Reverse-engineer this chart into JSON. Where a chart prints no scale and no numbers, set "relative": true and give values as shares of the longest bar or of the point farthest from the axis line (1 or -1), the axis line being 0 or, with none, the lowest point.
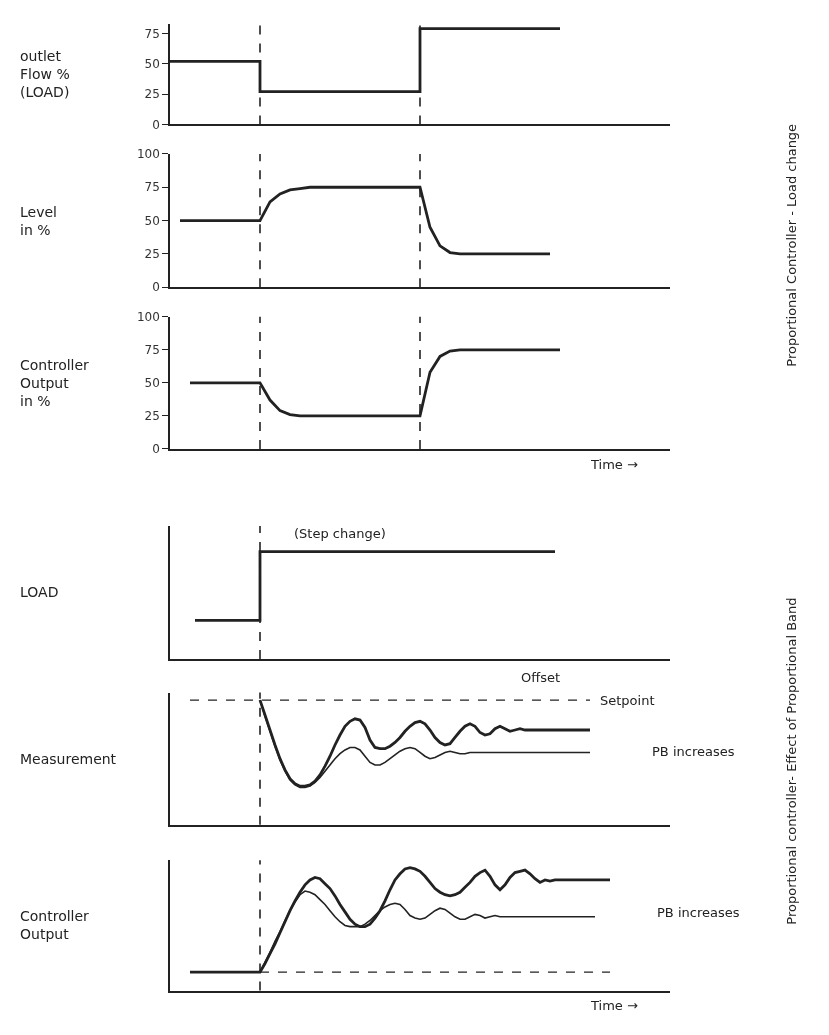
{
  "chart_data": [
    {
      "type": "step",
      "ylabel": "outlet\nFlow %\n(LOAD)",
      "annotations": [
        "Proportional Controller - Load change"
      ],
      "categories": [
        null,
        null,
        null,
        null,
        null,
        null,
        null,
        null,
        null,
        null,
        null,
        null,
        null,
        null,
        null,
        null,
        null,
        null,
        null,
        null,
        null,
        null,
        null,
        null,
        null,
        null,
        null,
        null,
        null,
        null,
        null,
        null,
        null,
        null,
        null,
        null,
        null,
        null,
        null,
        null,
        null,
        null,
        null,
        null,
        null,
        null,
        null,
        null,
        null,
        null,
        null
      ],
      "series": [
        {
          "color": "#222222",
          "values": [
            52,
            52,
            52,
            52,
            52,
            52,
            52,
            52,
            52,
            27,
            27,
            27,
            27,
            27,
            27,
            27,
            27,
            27,
            27,
            27,
            27,
            27,
            27,
            27,
            27,
            79,
            79,
            79,
            79,
            79,
            79,
            79,
            79,
            79,
            79,
            79,
            79,
            79,
            79,
            79,
            null,
            null,
            null,
            null,
            null,
            null,
            null,
            null,
            null,
            null,
            null
          ]
        }
      ],
      "ylim": [
        0,
        83
      ],
      "yticks": [
        0,
        25,
        50,
        75
      ],
      "tick_labels": "y",
      "marker": "none"
    },
    {
      "type": "line",
      "ylabel": "Level\nin %",
      "categories": [
        null,
        null,
        null,
        null,
        null,
        null,
        null,
        null,
        null,
        null,
        null,
        null,
        null,
        null,
        null,
        null,
        null,
        null,
        null,
        null,
        null,
        null,
        null,
        null,
        null,
        null,
        null,
        null,
        null,
        null,
        null,
        null,
        null,
        null,
        null,
        null,
        null,
        null,
        null,
        null,
        null,
        null,
        null,
        null,
        null,
        null,
        null,
        null,
        null,
        null,
        null
      ],
      "series": [
        {
          "color": "#222222",
          "values": [
            null,
            50,
            50,
            50,
            50,
            50,
            50,
            50,
            50,
            50,
            64,
            70,
            73,
            74,
            75,
            75,
            75,
            75,
            75,
            75,
            75,
            75,
            75,
            75,
            75,
            75,
            45,
            31,
            26,
            25,
            25,
            25,
            25,
            25,
            25,
            25,
            25,
            25,
            25,
            null,
            null,
            null,
            null,
            null,
            null,
            null,
            null,
            null,
            null,
            null,
            null
          ]
        }
      ],
      "ylim": [
        0,
        100
      ],
      "yticks": [
        0,
        25,
        50,
        75,
        100
      ],
      "tick_labels": "y",
      "marker": "none"
    },
    {
      "type": "line",
      "ylabel": "Controller\nOutput\nin %",
      "xlabel": "Time →",
      "categories": [
        null,
        null,
        null,
        null,
        null,
        null,
        null,
        null,
        null,
        null,
        null,
        null,
        null,
        null,
        null,
        null,
        null,
        null,
        null,
        null,
        null,
        null,
        null,
        null,
        null,
        null,
        null,
        null,
        null,
        null,
        null,
        null,
        null,
        null,
        null,
        null,
        null,
        null,
        null,
        null,
        null,
        null,
        null,
        null,
        null,
        null,
        null,
        null,
        null,
        null,
        null
      ],
      "series": [
        {
          "color": "#222222",
          "values": [
            null,
            null,
            50,
            50,
            50,
            50,
            50,
            50,
            50,
            50,
            37,
            29,
            26,
            25,
            25,
            25,
            25,
            25,
            25,
            25,
            25,
            25,
            25,
            25,
            25,
            25,
            58,
            70,
            74,
            75,
            75,
            75,
            75,
            75,
            75,
            75,
            75,
            75,
            75,
            75,
            null,
            null,
            null,
            null,
            null,
            null,
            null,
            null,
            null,
            null,
            null
          ]
        }
      ],
      "ylim": [
        0,
        100
      ],
      "yticks": [
        0,
        25,
        50,
        75,
        100
      ],
      "tick_labels": "y",
      "marker": "none"
    },
    {
      "type": "step",
      "ylabel": "LOAD",
      "relative": true,
      "annotations": [
        "(Step change)",
        "Proportional controller- Effect of Proportional Band"
      ],
      "categories": [
        null,
        null,
        null,
        null,
        null,
        null,
        null,
        null,
        null,
        null,
        null,
        null,
        null,
        null,
        null,
        null,
        null,
        null,
        null,
        null,
        null,
        null,
        null,
        null,
        null,
        null,
        null,
        null,
        null,
        null,
        null,
        null,
        null,
        null,
        null,
        null,
        null,
        null,
        null,
        null,
        null,
        null,
        null,
        null,
        null,
        null,
        null,
        null,
        null,
        null,
        null,
        null,
        null,
        null,
        null,
        null,
        null,
        null,
        null,
        null,
        null,
        null,
        null,
        null,
        null,
        null,
        null,
        null,
        null,
        null,
        null,
        null,
        null,
        null,
        null,
        null,
        null,
        null,
        null,
        null,
        null,
        null,
        null,
        null,
        null,
        null,
        null,
        null,
        null,
        null,
        null,
        null,
        null,
        null,
        null,
        null,
        null,
        null,
        null,
        null,
        null
      ],
      "series": [
        {
          "color": "#222222",
          "values": [
            null,
            null,
            null,
            null,
            null,
            0.36,
            0.36,
            0.36,
            0.36,
            0.36,
            0.36,
            0.36,
            0.36,
            0.36,
            0.36,
            0.36,
            0.36,
            0.36,
            1,
            1,
            1,
            1,
            1,
            1,
            1,
            1,
            1,
            1,
            1,
            1,
            1,
            1,
            1,
            1,
            1,
            1,
            1,
            1,
            1,
            1,
            1,
            1,
            1,
            1,
            1,
            1,
            1,
            1,
            1,
            1,
            1,
            1,
            1,
            1,
            1,
            1,
            1,
            1,
            1,
            1,
            1,
            1,
            1,
            1,
            1,
            1,
            1,
            1,
            1,
            1,
            1,
            1,
            1,
            1,
            1,
            1,
            1,
            1,
            null,
            null,
            null,
            null,
            null,
            null,
            null,
            null,
            null,
            null,
            null,
            null,
            null,
            null,
            null,
            null,
            null,
            null,
            null,
            null,
            null,
            null,
            null
          ]
        }
      ],
      "tick_labels": false,
      "marker": "none"
    },
    {
      "type": "line",
      "ylabel": "Measurement",
      "relative": true,
      "annotations": [
        "Offset",
        "Setpoint",
        "PB increases"
      ],
      "categories": [
        null,
        null,
        null,
        null,
        null,
        null,
        null,
        null,
        null,
        null,
        null,
        null,
        null,
        null,
        null,
        null,
        null,
        null,
        null,
        null,
        null,
        null,
        null,
        null,
        null,
        null,
        null,
        null,
        null,
        null,
        null,
        null,
        null,
        null,
        null,
        null,
        null,
        null,
        null,
        null,
        null,
        null,
        null,
        null,
        null,
        null,
        null,
        null,
        null,
        null,
        null,
        null,
        null,
        null,
        null,
        null,
        null,
        null,
        null,
        null,
        null,
        null,
        null,
        null,
        null,
        null,
        null,
        null,
        null,
        null,
        null,
        null,
        null,
        null,
        null,
        null,
        null,
        null,
        null,
        null,
        null,
        null,
        null,
        null,
        null,
        null,
        null,
        null,
        null,
        null,
        null,
        null,
        null,
        null,
        null,
        null,
        null,
        null,
        null,
        null,
        null
      ],
      "series": [
        {
          "color": "#222222",
          "values": [
            null,
            null,
            null,
            null,
            null,
            null,
            null,
            null,
            null,
            null,
            null,
            null,
            null,
            null,
            null,
            null,
            null,
            null,
            1.0,
            0.88,
            0.76,
            0.64,
            0.53,
            0.44,
            0.37,
            0.33,
            0.31,
            0.31,
            0.32,
            0.35,
            0.4,
            0.47,
            0.55,
            0.64,
            0.72,
            0.79,
            0.83,
            0.85,
            0.84,
            0.78,
            0.68,
            0.62,
            0.61,
            0.61,
            0.63,
            0.66,
            0.7,
            0.75,
            0.79,
            0.82,
            0.83,
            0.81,
            0.76,
            0.7,
            0.66,
            0.64,
            0.65,
            0.7,
            0.75,
            0.79,
            0.81,
            0.79,
            0.74,
            0.72,
            0.73,
            0.77,
            0.79,
            0.77,
            0.75,
            0.76,
            0.77,
            0.76,
            0.76,
            0.76,
            0.76,
            0.76,
            0.76,
            0.76,
            0.76,
            0.76,
            0.76,
            0.76,
            0.76,
            0.76,
            0.76,
            null,
            null,
            null,
            null,
            null,
            null,
            null,
            null,
            null,
            null,
            null,
            null,
            null,
            null,
            null,
            null
          ]
        },
        {
          "color": "#222222",
          "values": [
            null,
            null,
            null,
            null,
            null,
            null,
            null,
            null,
            null,
            null,
            null,
            null,
            null,
            null,
            null,
            null,
            null,
            null,
            1.0,
            0.87,
            0.75,
            0.63,
            0.52,
            0.43,
            0.36,
            0.32,
            0.3,
            0.3,
            0.31,
            0.34,
            0.38,
            0.43,
            0.48,
            0.53,
            0.57,
            0.6,
            0.62,
            0.62,
            0.6,
            0.55,
            0.5,
            0.48,
            0.48,
            0.5,
            0.53,
            0.56,
            0.59,
            0.61,
            0.62,
            0.61,
            0.58,
            0.55,
            0.53,
            0.54,
            0.56,
            0.58,
            0.59,
            0.58,
            0.57,
            0.57,
            0.58,
            0.58,
            0.58,
            0.58,
            0.58,
            0.58,
            0.58,
            0.58,
            0.58,
            0.58,
            0.58,
            0.58,
            0.58,
            0.58,
            0.58,
            0.58,
            0.58,
            0.58,
            0.58,
            0.58,
            0.58,
            0.58,
            0.58,
            0.58,
            0.58,
            null,
            null,
            null,
            null,
            null,
            null,
            null,
            null,
            null,
            null,
            null,
            null,
            null,
            null,
            null,
            null
          ]
        },
        {
          "color": "#222222",
          "line_style": "dashed",
          "values": [
            null,
            null,
            null,
            null,
            1,
            1,
            1,
            1,
            1,
            1,
            1,
            1,
            1,
            1,
            1,
            1,
            1,
            1,
            1,
            1,
            1,
            1,
            1,
            1,
            1,
            1,
            1,
            1,
            1,
            1,
            1,
            1,
            1,
            1,
            1,
            1,
            1,
            1,
            1,
            1,
            1,
            1,
            1,
            1,
            1,
            1,
            1,
            1,
            1,
            1,
            1,
            1,
            1,
            1,
            1,
            1,
            1,
            1,
            1,
            1,
            1,
            1,
            1,
            1,
            1,
            1,
            1,
            1,
            1,
            1,
            1,
            1,
            1,
            1,
            1,
            1,
            1,
            1,
            1,
            1,
            1,
            1,
            1,
            1,
            1,
            null,
            null,
            null,
            null,
            null,
            null,
            null,
            null,
            null,
            null,
            null,
            null,
            null,
            null,
            null,
            null
          ]
        }
      ],
      "tick_labels": false,
      "marker": "none"
    },
    {
      "type": "line",
      "ylabel": "Controller\nOutput",
      "xlabel": "Time →",
      "relative": true,
      "annotations": [
        "PB increases"
      ],
      "categories": [
        null,
        null,
        null,
        null,
        null,
        null,
        null,
        null,
        null,
        null,
        null,
        null,
        null,
        null,
        null,
        null,
        null,
        null,
        null,
        null,
        null,
        null,
        null,
        null,
        null,
        null,
        null,
        null,
        null,
        null,
        null,
        null,
        null,
        null,
        null,
        null,
        null,
        null,
        null,
        null,
        null,
        null,
        null,
        null,
        null,
        null,
        null,
        null,
        null,
        null,
        null,
        null,
        null,
        null,
        null,
        null,
        null,
        null,
        null,
        null,
        null,
        null,
        null,
        null,
        null,
        null,
        null,
        null,
        null,
        null,
        null,
        null,
        null,
        null,
        null,
        null,
        null,
        null,
        null,
        null,
        null,
        null,
        null,
        null,
        null,
        null,
        null,
        null,
        null,
        null,
        null,
        null,
        null,
        null,
        null,
        null,
        null,
        null,
        null,
        null,
        null
      ],
      "series": [
        {
          "color": "#222222",
          "values": [
            null,
            null,
            null,
            null,
            0.15,
            0.15,
            0.15,
            0.15,
            0.15,
            0.15,
            0.15,
            0.15,
            0.15,
            0.15,
            0.15,
            0.15,
            0.15,
            0.15,
            0.15,
            0.22,
            0.3,
            0.38,
            0.47,
            0.56,
            0.65,
            0.73,
            0.8,
            0.86,
            0.9,
            0.92,
            0.91,
            0.87,
            0.83,
            0.77,
            0.7,
            0.64,
            0.58,
            0.54,
            0.52,
            0.52,
            0.54,
            0.59,
            0.65,
            0.73,
            0.82,
            0.9,
            0.95,
            0.99,
            1.0,
            0.99,
            0.97,
            0.93,
            0.88,
            0.83,
            0.8,
            0.78,
            0.77,
            0.78,
            0.8,
            0.84,
            0.88,
            0.93,
            0.96,
            0.98,
            0.93,
            0.86,
            0.82,
            0.86,
            0.92,
            0.96,
            0.97,
            0.98,
            0.95,
            0.91,
            0.88,
            0.9,
            0.89,
            0.9,
            0.9,
            0.9,
            0.9,
            0.9,
            0.9,
            0.9,
            0.9,
            0.9,
            0.9,
            0.9,
            0.9,
            null,
            null,
            null,
            null,
            null,
            null,
            null,
            null,
            null,
            null,
            null,
            null
          ]
        },
        {
          "color": "#222222",
          "values": [
            null,
            null,
            null,
            null,
            null,
            null,
            null,
            null,
            null,
            null,
            null,
            null,
            null,
            null,
            null,
            null,
            null,
            null,
            0.15,
            0.23,
            0.31,
            0.4,
            0.48,
            0.57,
            0.65,
            0.72,
            0.78,
            0.81,
            0.8,
            0.78,
            0.74,
            0.7,
            0.65,
            0.6,
            0.56,
            0.53,
            0.52,
            0.52,
            0.52,
            0.54,
            0.57,
            0.61,
            0.65,
            0.68,
            0.7,
            0.71,
            0.7,
            0.66,
            0.61,
            0.59,
            0.58,
            0.59,
            0.62,
            0.65,
            0.67,
            0.66,
            0.63,
            0.6,
            0.58,
            0.58,
            0.6,
            0.62,
            0.61,
            0.59,
            0.6,
            0.61,
            0.6,
            0.6,
            0.6,
            0.6,
            0.6,
            0.6,
            0.6,
            0.6,
            0.6,
            0.6,
            0.6,
            0.6,
            0.6,
            0.6,
            0.6,
            0.6,
            0.6,
            0.6,
            0.6,
            0.6,
            null,
            null,
            null,
            null,
            null,
            null,
            null,
            null,
            null,
            null,
            null,
            null,
            null,
            null,
            null
          ]
        },
        {
          "color": "#222222",
          "line_style": "dashed",
          "values": [
            null,
            null,
            null,
            null,
            null,
            null,
            null,
            null,
            null,
            null,
            null,
            null,
            null,
            null,
            null,
            null,
            null,
            null,
            0.15,
            0.15,
            0.15,
            0.15,
            0.15,
            0.15,
            0.15,
            0.15,
            0.15,
            0.15,
            0.15,
            0.15,
            0.15,
            0.15,
            0.15,
            0.15,
            0.15,
            0.15,
            0.15,
            0.15,
            0.15,
            0.15,
            0.15,
            0.15,
            0.15,
            0.15,
            0.15,
            0.15,
            0.15,
            0.15,
            0.15,
            0.15,
            0.15,
            0.15,
            0.15,
            0.15,
            0.15,
            0.15,
            0.15,
            0.15,
            0.15,
            0.15,
            0.15,
            0.15,
            0.15,
            0.15,
            0.15,
            0.15,
            0.15,
            0.15,
            0.15,
            0.15,
            0.15,
            0.15,
            0.15,
            0.15,
            0.15,
            0.15,
            0.15,
            0.15,
            0.15,
            0.15,
            0.15,
            0.15,
            0.15,
            0.15,
            0.15,
            0.15,
            0.15,
            0.15,
            0.15,
            null,
            null,
            null,
            null,
            null,
            null,
            null,
            null,
            null,
            null,
            null,
            null
          ]
        }
      ],
      "tick_labels": false,
      "marker": "none"
    }
  ]
}
